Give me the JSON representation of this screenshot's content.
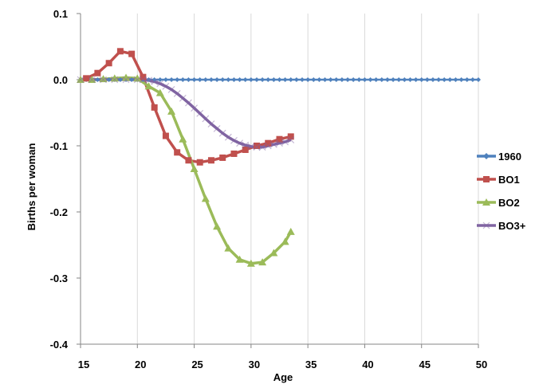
{
  "chart_data": {
    "type": "line",
    "title": "",
    "xlabel": "Age",
    "ylabel": "Births per woman",
    "xlim": [
      15,
      50
    ],
    "ylim": [
      -0.4,
      0.1
    ],
    "x_ticks": [
      "15",
      "20",
      "25",
      "30",
      "35",
      "40",
      "45",
      "50"
    ],
    "y_ticks": [
      "0.1",
      "0.0",
      "-0.1",
      "-0.2",
      "-0.3",
      "-0.4"
    ],
    "grid": "vertical",
    "legend_position": "right",
    "series": [
      {
        "name": "1960",
        "color": "#4f81bd",
        "marker": "diamond",
        "x": [
          15,
          15.5,
          16,
          16.5,
          17,
          17.5,
          18,
          18.5,
          19,
          19.5,
          20,
          20.5,
          21,
          21.5,
          22,
          22.5,
          23,
          23.5,
          24,
          24.5,
          25,
          25.5,
          26,
          26.5,
          27,
          27.5,
          28,
          28.5,
          29,
          29.5,
          30,
          30.5,
          31,
          31.5,
          32,
          32.5,
          33,
          33.5,
          34,
          34.5,
          35,
          35.5,
          36,
          36.5,
          37,
          37.5,
          38,
          38.5,
          39,
          39.5,
          40,
          40.5,
          41,
          41.5,
          42,
          42.5,
          43,
          43.5,
          44,
          44.5,
          45,
          45.5,
          46,
          46.5,
          47,
          47.5,
          48,
          48.5,
          49,
          49.5,
          50
        ],
        "y": [
          0,
          0,
          0,
          0,
          0,
          0,
          0,
          0,
          0,
          0,
          0,
          0,
          0,
          0,
          0,
          0,
          0,
          0,
          0,
          0,
          0,
          0,
          0,
          0,
          0,
          0,
          0,
          0,
          0,
          0,
          0,
          0,
          0,
          0,
          0,
          0,
          0,
          0,
          0,
          0,
          0,
          0,
          0,
          0,
          0,
          0,
          0,
          0,
          0,
          0,
          0,
          0,
          0,
          0,
          0,
          0,
          0,
          0,
          0,
          0,
          0,
          0,
          0,
          0,
          0,
          0,
          0,
          0,
          0,
          0,
          0
        ]
      },
      {
        "name": "BO1",
        "color": "#c0504d",
        "marker": "square",
        "x": [
          15.5,
          16.5,
          17.5,
          18.5,
          19.5,
          20.5,
          21.5,
          22.5,
          23.5,
          24.5,
          25.5,
          26.5,
          27.5,
          28.5,
          29.5,
          30.5,
          31.5,
          32.5,
          33.5
        ],
        "y": [
          0.002,
          0.01,
          0.025,
          0.043,
          0.039,
          0.004,
          -0.042,
          -0.085,
          -0.11,
          -0.122,
          -0.125,
          -0.122,
          -0.118,
          -0.112,
          -0.106,
          -0.1,
          -0.096,
          -0.09,
          -0.086
        ]
      },
      {
        "name": "BO2",
        "color": "#9bbb59",
        "marker": "triangle",
        "x": [
          15,
          16,
          17,
          18,
          19,
          20,
          21,
          22,
          23,
          24,
          25,
          26,
          27,
          28,
          29,
          30,
          31,
          32,
          33,
          33.5
        ],
        "y": [
          0,
          0,
          0.001,
          0.002,
          0.003,
          0.002,
          -0.01,
          -0.02,
          -0.048,
          -0.09,
          -0.135,
          -0.18,
          -0.222,
          -0.255,
          -0.272,
          -0.278,
          -0.276,
          -0.262,
          -0.245,
          -0.23
        ]
      },
      {
        "name": "BO3+",
        "color": "#8064a2",
        "marker": "x",
        "x": [
          15,
          16,
          17,
          18,
          19,
          20,
          20.5,
          21,
          21.5,
          22,
          22.5,
          23,
          23.5,
          24,
          24.5,
          25,
          25.5,
          26,
          26.5,
          27,
          27.5,
          28,
          28.5,
          29,
          29.5,
          30,
          30.5,
          31,
          31.5,
          32,
          32.5,
          33,
          33.5
        ],
        "y": [
          0,
          0,
          0,
          0,
          0,
          0,
          0,
          -0.001,
          -0.003,
          -0.006,
          -0.01,
          -0.015,
          -0.021,
          -0.028,
          -0.035,
          -0.043,
          -0.051,
          -0.059,
          -0.067,
          -0.074,
          -0.081,
          -0.087,
          -0.092,
          -0.096,
          -0.099,
          -0.101,
          -0.102,
          -0.102,
          -0.1,
          -0.098,
          -0.096,
          -0.094,
          -0.091
        ]
      }
    ]
  }
}
